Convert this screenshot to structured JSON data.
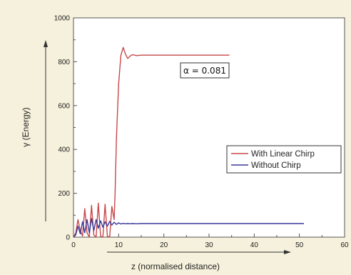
{
  "chart_data": {
    "type": "line",
    "title": "",
    "xlabel": "z (normalised distance)",
    "ylabel": "γ (Energy)",
    "xlim": [
      0,
      60
    ],
    "ylim": [
      0,
      1000
    ],
    "x_ticks": [
      "0",
      "10",
      "20",
      "30",
      "40",
      "50",
      "60"
    ],
    "y_ticks": [
      "0",
      "200",
      "400",
      "600",
      "800",
      "1000"
    ],
    "grid": false,
    "legend_position": "center-right",
    "annotation": "α = 0.081",
    "series": [
      {
        "name": "With Linear Chirp",
        "color": "#c8484a",
        "x": [
          0,
          0.5,
          1.0,
          1.5,
          2.0,
          2.5,
          3.0,
          3.5,
          4.0,
          4.5,
          5.0,
          5.5,
          6.0,
          6.5,
          7.0,
          7.5,
          8.0,
          8.5,
          9.0,
          9.2,
          9.5,
          10.0,
          10.5,
          11.0,
          11.5,
          12.0,
          12.5,
          13.0,
          14.0,
          15.0,
          20.0,
          25.0,
          30.0,
          34.5
        ],
        "y": [
          0,
          20,
          80,
          30,
          5,
          130,
          20,
          0,
          145,
          10,
          0,
          155,
          5,
          0,
          150,
          5,
          0,
          140,
          80,
          200,
          450,
          700,
          830,
          865,
          835,
          815,
          825,
          832,
          828,
          830,
          830,
          830,
          830,
          830
        ]
      },
      {
        "name": "Without Chirp",
        "color": "#3a3a9a",
        "x": [
          0,
          0.5,
          1.0,
          1.5,
          2.0,
          2.5,
          3.0,
          3.5,
          4.0,
          4.5,
          5.0,
          5.5,
          6.0,
          6.5,
          7.0,
          7.5,
          8.0,
          8.5,
          9.0,
          9.5,
          10.0,
          10.5,
          11.0,
          11.5,
          12.0,
          12.5,
          13.0,
          14.0,
          15.0,
          20.0,
          30.0,
          40.0,
          51.0
        ],
        "y": [
          0,
          10,
          50,
          15,
          70,
          20,
          80,
          20,
          85,
          30,
          80,
          40,
          75,
          45,
          70,
          50,
          72,
          55,
          68,
          58,
          65,
          60,
          63,
          61,
          62,
          61,
          62,
          61,
          62,
          62,
          62,
          62,
          62
        ]
      }
    ]
  }
}
